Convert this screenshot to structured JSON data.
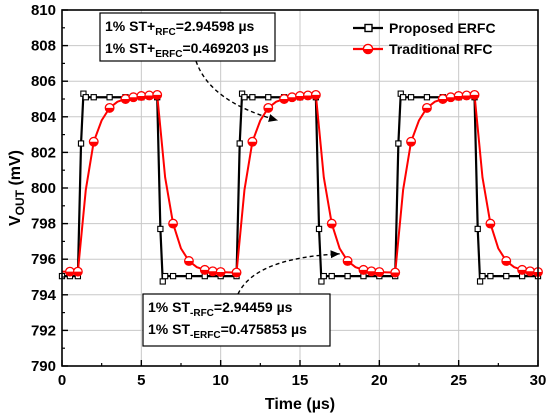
{
  "chart_data": {
    "type": "line",
    "title": "",
    "xlabel": "Time (µs)",
    "ylabel_main": "V",
    "ylabel_sub": "OUT",
    "ylabel_unit": " (mV)",
    "xlim": [
      0,
      30
    ],
    "ylim": [
      790,
      810
    ],
    "xticks": [
      0,
      5,
      10,
      15,
      20,
      25,
      30
    ],
    "yticks": [
      790,
      792,
      794,
      796,
      798,
      800,
      802,
      804,
      806,
      808,
      810
    ],
    "grid": true,
    "legend_position": "top-right",
    "period_us": 10,
    "series": [
      {
        "name": "Proposed ERFC",
        "color": "#000000",
        "marker": "square",
        "x": [
          0.0,
          0.5,
          1.0,
          1.2,
          1.35,
          1.5,
          2,
          3,
          4,
          5,
          6.0,
          6.2,
          6.35,
          6.5,
          7,
          8,
          9,
          10,
          11.0,
          11.2,
          11.35,
          11.5,
          12,
          13,
          14,
          15,
          16.0,
          16.2,
          16.35,
          16.5,
          17,
          18,
          19,
          20,
          21.0,
          21.2,
          21.35,
          21.5,
          22,
          23,
          24,
          25,
          26.0,
          26.2,
          26.35,
          26.5,
          27,
          28,
          29,
          30
        ],
        "y": [
          795.05,
          795.05,
          795.05,
          802.5,
          805.3,
          805.1,
          805.1,
          805.1,
          805.1,
          805.1,
          805.1,
          797.7,
          794.75,
          795.05,
          795.05,
          795.05,
          795.05,
          795.05,
          795.05,
          802.5,
          805.3,
          805.1,
          805.1,
          805.1,
          805.1,
          805.1,
          805.1,
          797.7,
          794.75,
          795.05,
          795.05,
          795.05,
          795.05,
          795.05,
          795.05,
          802.5,
          805.3,
          805.1,
          805.1,
          805.1,
          805.1,
          805.1,
          805.1,
          797.7,
          794.75,
          795.05,
          795.05,
          795.05,
          795.05,
          795.05
        ]
      },
      {
        "name": "Traditional RFC",
        "color": "#ff0000",
        "marker": "circle",
        "x": [
          0,
          0.5,
          1,
          1.5,
          2,
          2.5,
          3,
          3.5,
          4,
          4.5,
          5,
          5.5,
          6,
          6.5,
          7,
          7.5,
          8,
          8.5,
          9,
          9.5,
          10,
          10.5,
          11,
          11.5,
          12,
          12.5,
          13,
          13.5,
          14,
          14.5,
          15,
          15.5,
          16,
          16.5,
          17,
          17.5,
          18,
          18.5,
          19,
          19.5,
          20,
          20.5,
          21,
          21.5,
          22,
          22.5,
          23,
          23.5,
          24,
          24.5,
          25,
          25.5,
          26,
          26.5,
          27,
          27.5,
          28,
          28.5,
          29,
          29.5,
          30
        ],
        "y": [
          795.3,
          795.3,
          795.3,
          799.9,
          802.6,
          803.8,
          804.5,
          804.85,
          805.0,
          805.1,
          805.17,
          805.2,
          805.23,
          800.6,
          798.0,
          796.6,
          795.9,
          795.55,
          795.4,
          795.32,
          795.28,
          795.26,
          795.25,
          799.9,
          802.6,
          803.8,
          804.5,
          804.85,
          805.0,
          805.1,
          805.17,
          805.2,
          805.23,
          800.6,
          798.0,
          796.6,
          795.9,
          795.55,
          795.4,
          795.32,
          795.28,
          795.26,
          795.25,
          799.9,
          802.6,
          803.8,
          804.5,
          804.85,
          805.0,
          805.1,
          805.17,
          805.2,
          805.23,
          800.6,
          798.0,
          796.6,
          795.9,
          795.55,
          795.4,
          795.32,
          795.28
        ],
        "marker_x": [
          0.5,
          1,
          2,
          3,
          4,
          4.5,
          5,
          5.5,
          6,
          7,
          8,
          9,
          9.5,
          10,
          11,
          12,
          13,
          14,
          14.5,
          15,
          15.5,
          16,
          17,
          18,
          19,
          19.5,
          20,
          21,
          22,
          23,
          24,
          24.5,
          25,
          25.5,
          26,
          27,
          28,
          29,
          29.5,
          30
        ],
        "marker_y": [
          795.3,
          795.3,
          802.6,
          804.5,
          805.0,
          805.1,
          805.17,
          805.2,
          805.23,
          798.0,
          795.9,
          795.4,
          795.32,
          795.28,
          795.25,
          802.6,
          804.5,
          805.0,
          805.1,
          805.17,
          805.2,
          805.23,
          798.0,
          795.9,
          795.4,
          795.32,
          795.28,
          795.25,
          802.6,
          804.5,
          805.0,
          805.1,
          805.17,
          805.2,
          805.23,
          798.0,
          795.9,
          795.4,
          795.32,
          795.28
        ]
      }
    ],
    "annotations": [
      {
        "lines": [
          {
            "pre": "1% ST+",
            "sub": "RFC",
            "post": "=2.94598 µs"
          },
          {
            "pre": "1% ST+",
            "sub": "ERFC",
            "post": "=0.469203 µs"
          }
        ],
        "arrow_target": {
          "x": 13.6,
          "y": 803.8
        }
      },
      {
        "lines": [
          {
            "pre": "1% ST",
            "sub": "-RFC",
            "post": "=2.94459 µs"
          },
          {
            "pre": "1% ST",
            "sub": "-ERFC",
            "post": "=0.475853 µs"
          }
        ],
        "arrow_target": {
          "x": 17.5,
          "y": 796.3
        }
      }
    ]
  }
}
